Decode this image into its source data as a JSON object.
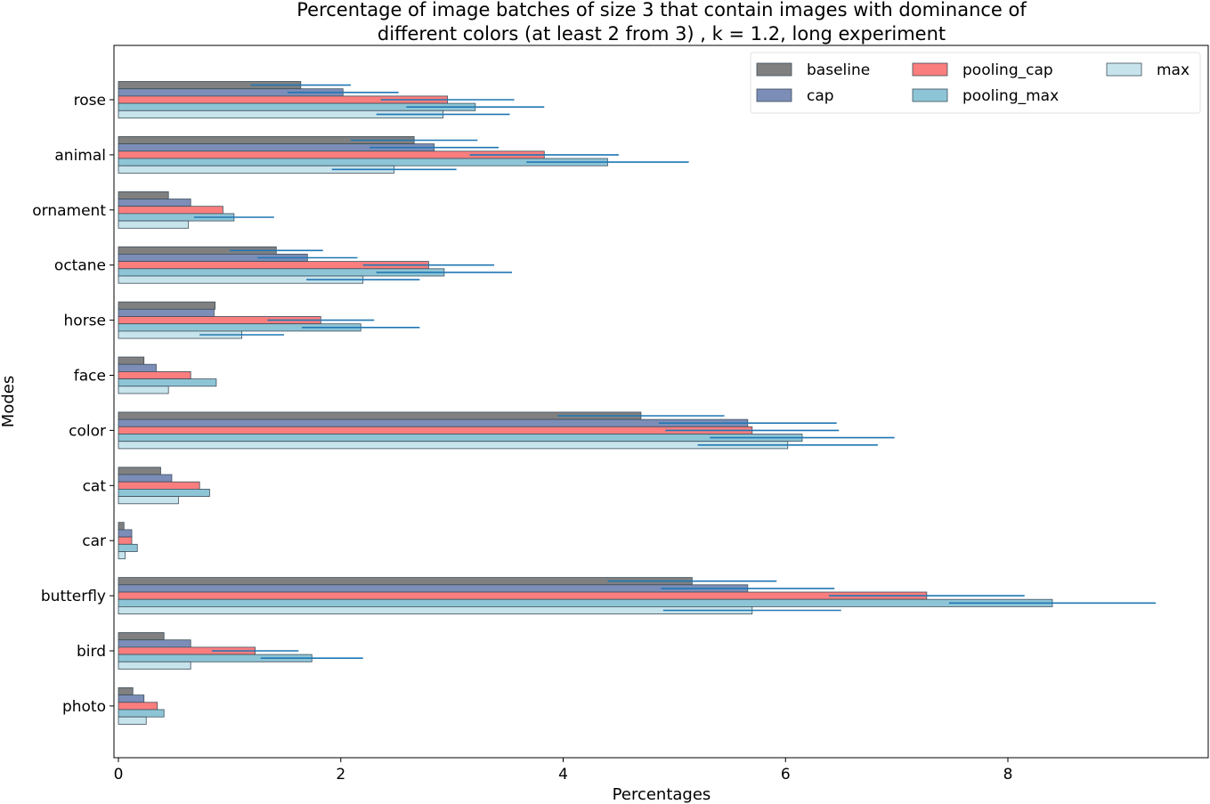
{
  "chart_data": {
    "type": "bar",
    "orientation": "horizontal",
    "title_lines": [
      "Percentage of image batches of size  3  that contain images with dominance of",
      "different colors (at least 2 from 3) , k = 1.2, long experiment"
    ],
    "xlabel": "Percentages",
    "ylabel": "Modes",
    "xlim": [
      -0.05,
      9.75
    ],
    "xticks": [
      0,
      2,
      4,
      6,
      8
    ],
    "grid": false,
    "legend_position": "top-right",
    "categories": [
      "rose",
      "animal",
      "ornament",
      "octane",
      "horse",
      "face",
      "color",
      "cat",
      "car",
      "butterfly",
      "bird",
      "photo"
    ],
    "series": [
      {
        "name": "baseline",
        "color": "#808080",
        "values": [
          1.64,
          2.66,
          0.45,
          1.42,
          0.87,
          0.23,
          4.7,
          0.38,
          0.05,
          5.16,
          0.41,
          0.13
        ],
        "errors": [
          0.45,
          0.57,
          0.0,
          0.42,
          0.0,
          0.0,
          0.75,
          0.0,
          0.0,
          0.76,
          0.0,
          0.0
        ]
      },
      {
        "name": "cap",
        "color": "#7c8db8",
        "values": [
          2.02,
          2.84,
          0.65,
          1.7,
          0.86,
          0.34,
          5.66,
          0.48,
          0.12,
          5.66,
          0.65,
          0.23
        ],
        "errors": [
          0.5,
          0.58,
          0.0,
          0.45,
          0.0,
          0.0,
          0.8,
          0.0,
          0.0,
          0.78,
          0.0,
          0.0
        ]
      },
      {
        "name": "pooling_cap",
        "color": "#fa7e7e",
        "values": [
          2.96,
          3.83,
          0.94,
          2.79,
          1.82,
          0.65,
          5.7,
          0.73,
          0.12,
          7.27,
          1.23,
          0.35
        ],
        "errors": [
          0.6,
          0.67,
          0.0,
          0.59,
          0.48,
          0.0,
          0.78,
          0.0,
          0.0,
          0.88,
          0.39,
          0.0
        ]
      },
      {
        "name": "pooling_max",
        "color": "#8ec5d6",
        "values": [
          3.21,
          4.4,
          1.04,
          2.93,
          2.18,
          0.88,
          6.15,
          0.82,
          0.17,
          8.4,
          1.74,
          0.41
        ],
        "errors": [
          0.62,
          0.73,
          0.36,
          0.61,
          0.53,
          0.0,
          0.83,
          0.0,
          0.0,
          0.93,
          0.46,
          0.0
        ]
      },
      {
        "name": "max",
        "color": "#c7e3eb",
        "values": [
          2.92,
          2.48,
          0.63,
          2.2,
          1.11,
          0.45,
          6.02,
          0.54,
          0.06,
          5.7,
          0.65,
          0.25
        ],
        "errors": [
          0.6,
          0.56,
          0.0,
          0.51,
          0.38,
          0.0,
          0.81,
          0.0,
          0.0,
          0.8,
          0.0,
          0.0
        ]
      }
    ],
    "error_color": "#1f77b4"
  }
}
